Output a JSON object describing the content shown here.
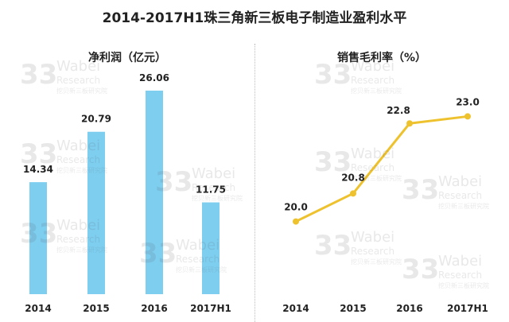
{
  "title": "2014-2017H1珠三角新三板电子制造业盈利水平",
  "watermark": {
    "brand": "Wabei",
    "sub": "Research",
    "cn": "挖贝新三板研究院"
  },
  "colors": {
    "bar": "#7ecef0",
    "line": "#eec22e",
    "text": "#222222"
  },
  "chart_data": [
    {
      "type": "bar",
      "title": "净利润（亿元）",
      "categories": [
        "2014",
        "2015",
        "2016",
        "2017H1"
      ],
      "values": [
        14.34,
        20.79,
        26.06,
        11.75
      ],
      "value_labels": [
        "14.34",
        "20.79",
        "26.06",
        "11.75"
      ],
      "ylim": [
        0,
        28.5
      ],
      "xlabel": "",
      "ylabel": ""
    },
    {
      "type": "line",
      "title": "销售毛利率（%）",
      "categories": [
        "2014",
        "2015",
        "2016",
        "2017H1"
      ],
      "values": [
        20.0,
        20.8,
        22.8,
        23.0
      ],
      "value_labels": [
        "20.0",
        "20.8",
        "22.8",
        "23.0"
      ],
      "ylim": [
        19.4,
        23.6
      ],
      "xlabel": "",
      "ylabel": ""
    }
  ]
}
